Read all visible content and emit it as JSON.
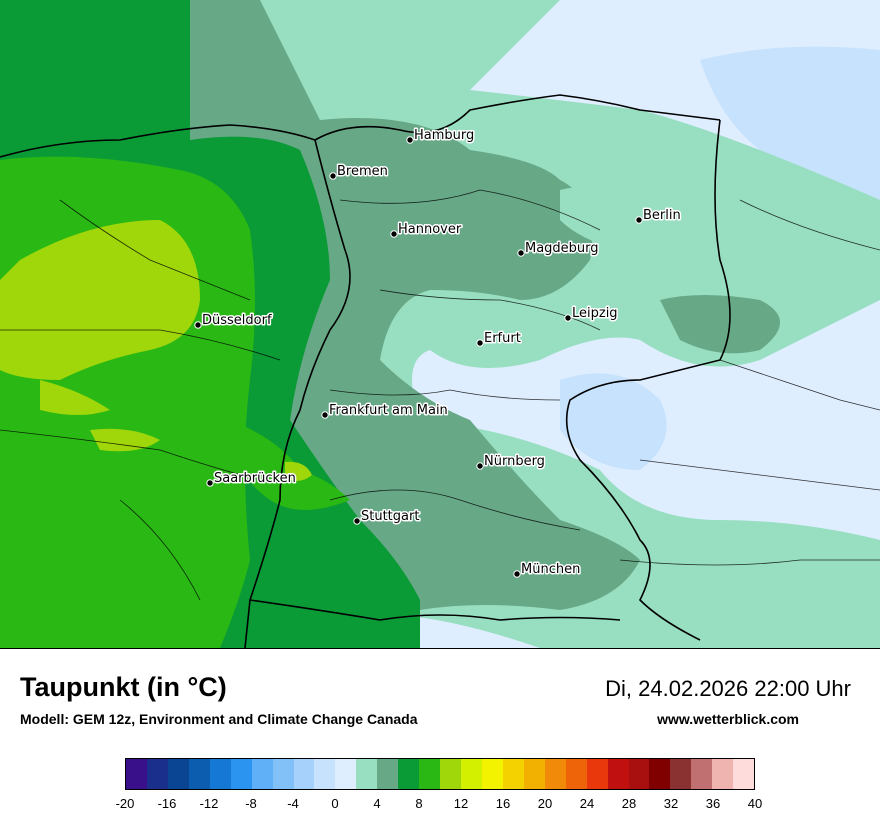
{
  "header": {
    "title": "Taupunkt (in °C)",
    "model": "Modell: GEM 12z, Environment and Climate Change Canada",
    "datetime": "Di, 24.02.2026 22:00 Uhr",
    "website": "www.wetterblick.com"
  },
  "map": {
    "cities": [
      {
        "name": "Hamburg"
      },
      {
        "name": "Bremen"
      },
      {
        "name": "Berlin"
      },
      {
        "name": "Hannover"
      },
      {
        "name": "Magdeburg"
      },
      {
        "name": "Düsseldorf"
      },
      {
        "name": "Leipzig"
      },
      {
        "name": "Erfurt"
      },
      {
        "name": "Frankfurt am Main"
      },
      {
        "name": "Nürnberg"
      },
      {
        "name": "Saarbrücken"
      },
      {
        "name": "Stuttgart"
      },
      {
        "name": "München"
      }
    ]
  },
  "legend": {
    "ticks": [
      "-20",
      "-16",
      "-12",
      "-8",
      "-4",
      "0",
      "4",
      "8",
      "12",
      "16",
      "20",
      "24",
      "28",
      "32",
      "36",
      "40"
    ],
    "colors": [
      "#3a0f8a",
      "#1a2f8c",
      "#0a4593",
      "#0c5cb0",
      "#1478d4",
      "#2b93f0",
      "#5fb0f6",
      "#82c0f8",
      "#a6d1fa",
      "#c6e2fc",
      "#dfeeff",
      "#98dec1",
      "#67a887",
      "#0a9a36",
      "#2ab814",
      "#9fd70a",
      "#d2f000",
      "#f3f300",
      "#f4d200",
      "#f2b000",
      "#f08a08",
      "#ee6408",
      "#e8380c",
      "#c01010",
      "#a81010",
      "#800000",
      "#8a3232",
      "#c07070",
      "#f0b4b0",
      "#ffdcdc"
    ]
  }
}
